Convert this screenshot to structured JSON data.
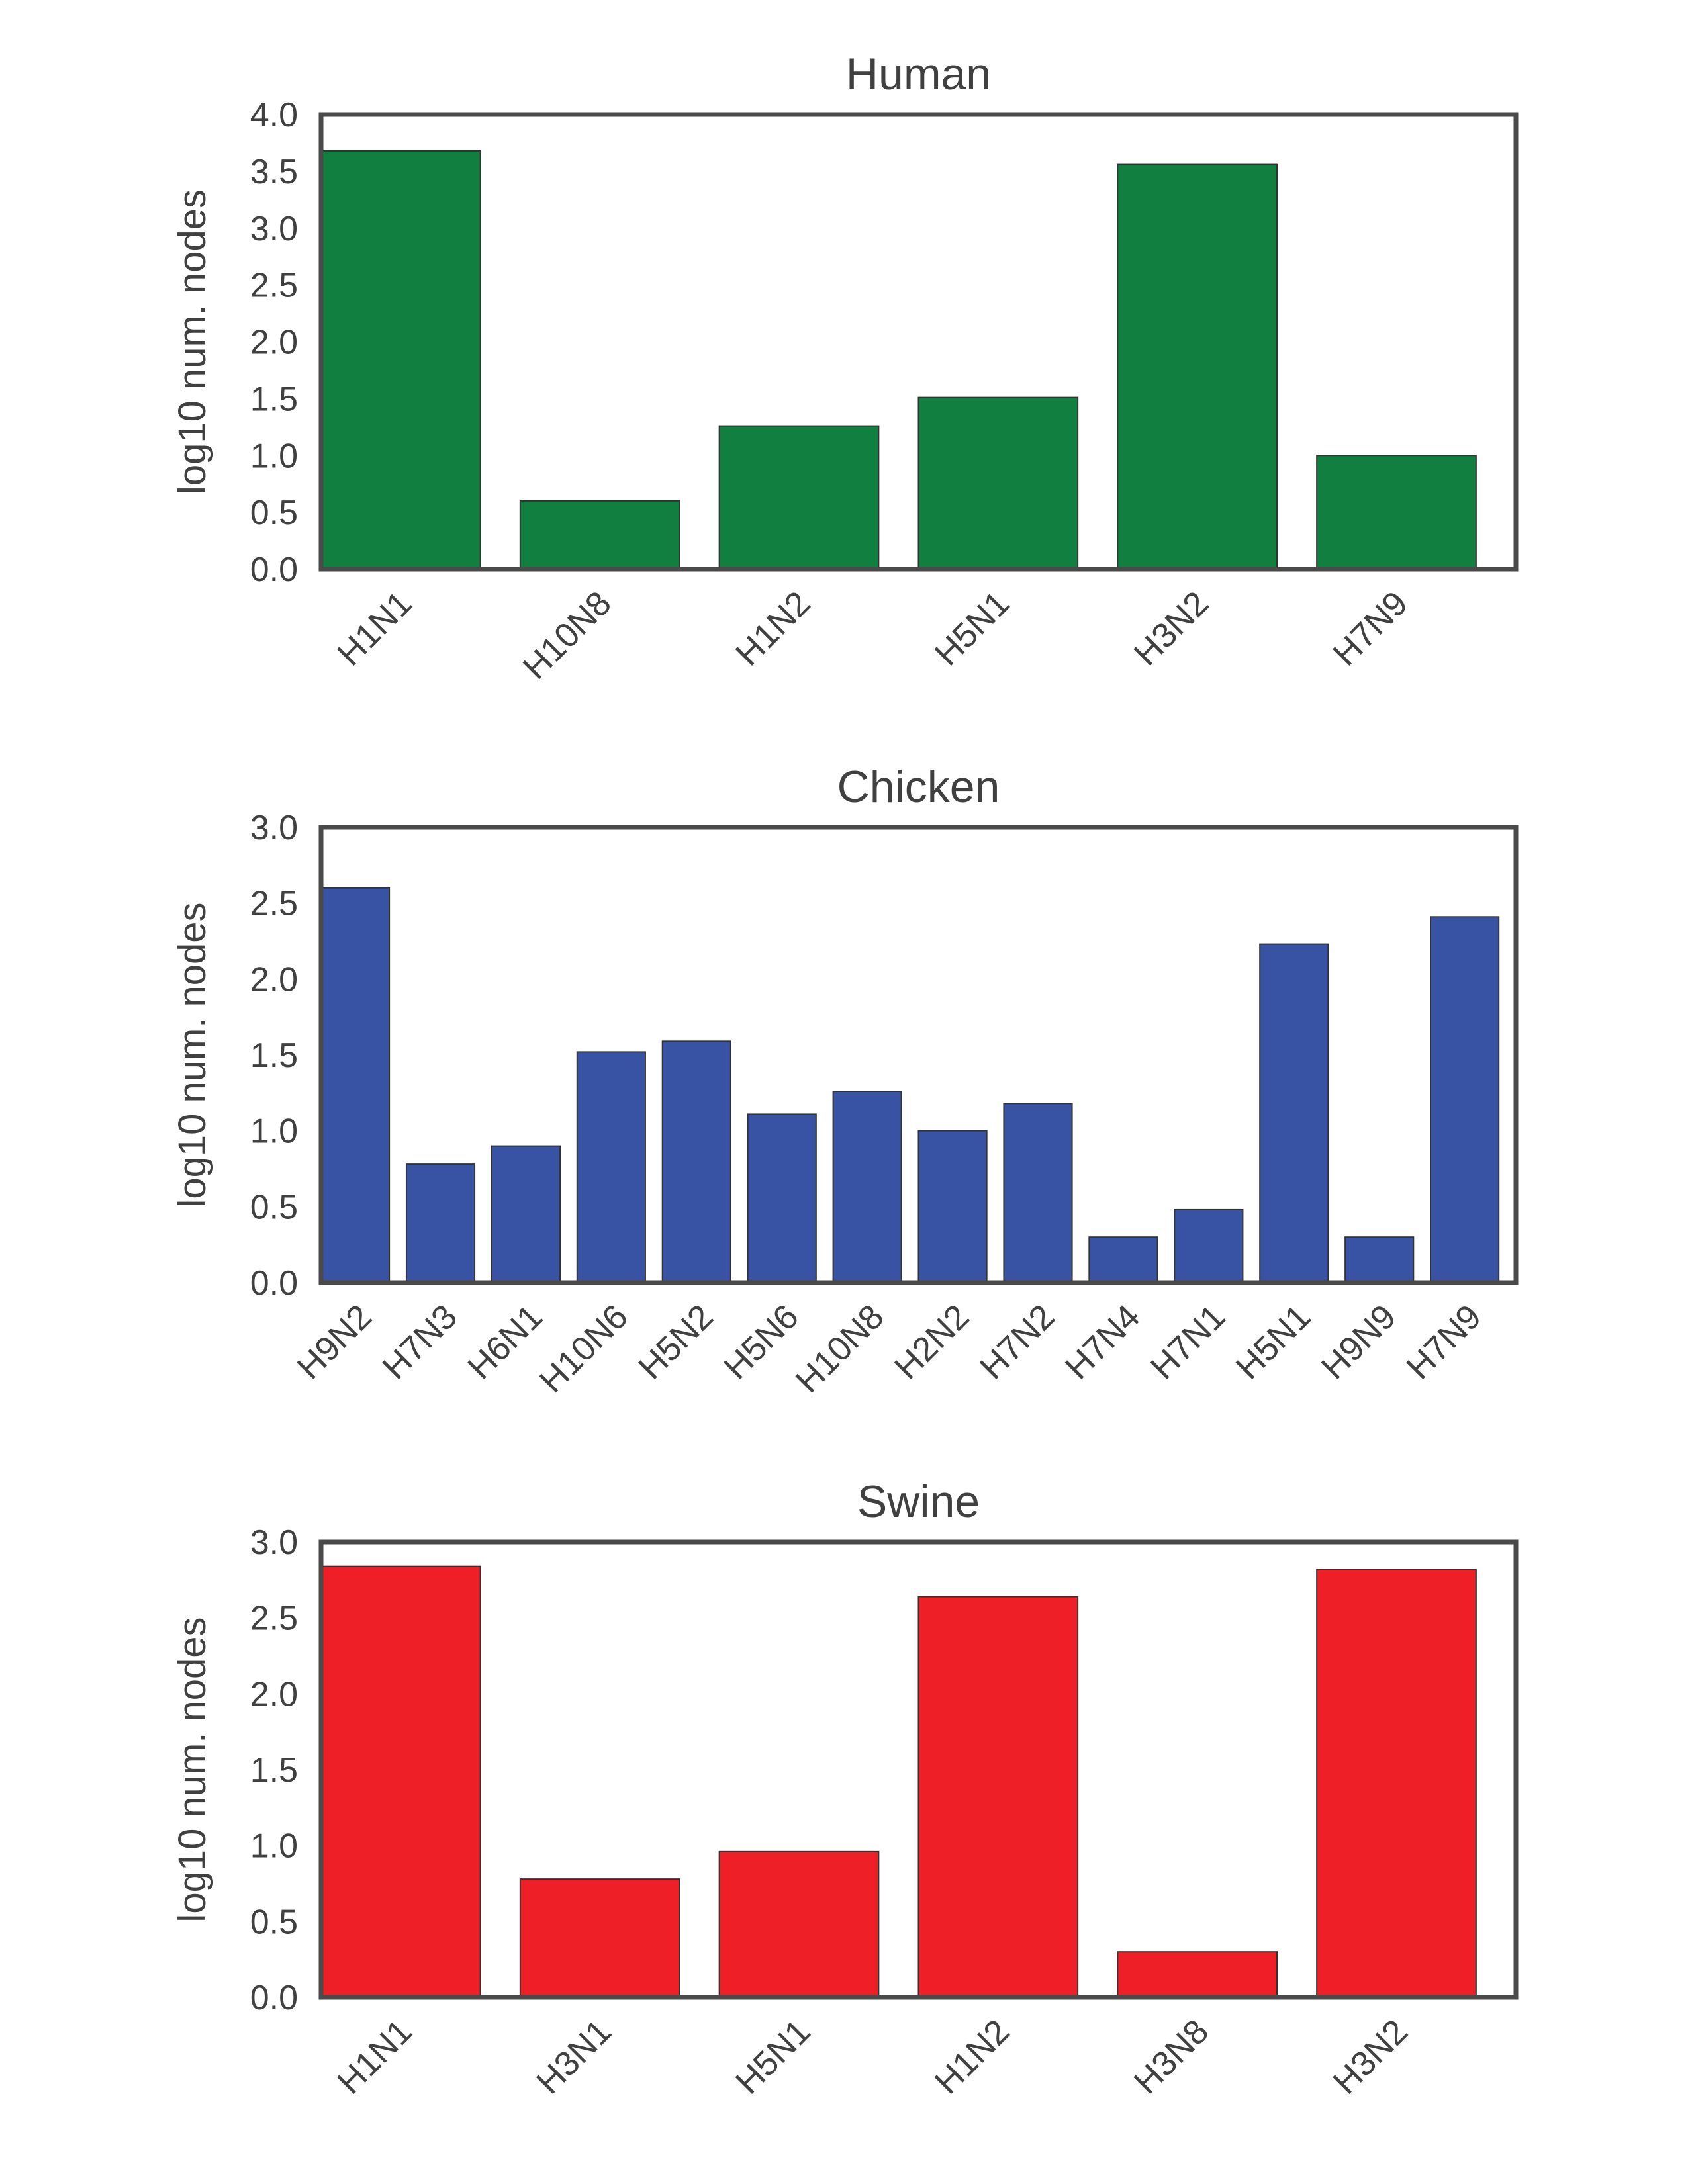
{
  "figure": {
    "frame_color": "#4a4a4a",
    "text_color": "#404040",
    "bar_edge_color": "#333333"
  },
  "chart_data": [
    {
      "type": "bar",
      "title": "Human",
      "ylabel": "log10 num. nodes",
      "xlabel": "",
      "categories": [
        "H1N1",
        "H10N8",
        "H1N2",
        "H5N1",
        "H3N2",
        "H7N9"
      ],
      "values": [
        3.68,
        0.6,
        1.26,
        1.51,
        3.56,
        1.0
      ],
      "ylim": [
        0,
        4.0
      ],
      "yticks": [
        "0.0",
        "0.5",
        "1.0",
        "1.5",
        "2.0",
        "2.5",
        "3.0",
        "3.5",
        "4.0"
      ],
      "color": "#117f40",
      "grid": false,
      "legend": "none"
    },
    {
      "type": "bar",
      "title": "Chicken",
      "ylabel": "log10 num. nodes",
      "xlabel": "",
      "categories": [
        "H9N2",
        "H7N3",
        "H6N1",
        "H10N6",
        "H5N2",
        "H5N6",
        "H10N8",
        "H2N2",
        "H7N2",
        "H7N4",
        "H7N1",
        "H5N1",
        "H9N9",
        "H7N9"
      ],
      "values": [
        2.6,
        0.78,
        0.9,
        1.52,
        1.59,
        1.11,
        1.26,
        1.0,
        1.18,
        0.3,
        0.48,
        2.23,
        0.3,
        2.41
      ],
      "ylim": [
        0,
        3.0
      ],
      "yticks": [
        "0.0",
        "0.5",
        "1.0",
        "1.5",
        "2.0",
        "2.5",
        "3.0"
      ],
      "color": "#3953a4",
      "grid": false,
      "legend": "none"
    },
    {
      "type": "bar",
      "title": "Swine",
      "ylabel": "log10 num. nodes",
      "xlabel": "",
      "categories": [
        "H1N1",
        "H3N1",
        "H5N1",
        "H1N2",
        "H3N8",
        "H3N2"
      ],
      "values": [
        2.84,
        0.78,
        0.96,
        2.64,
        0.3,
        2.82
      ],
      "ylim": [
        0,
        3.0
      ],
      "yticks": [
        "0.0",
        "0.5",
        "1.0",
        "1.5",
        "2.0",
        "2.5",
        "3.0"
      ],
      "color": "#ee1f26",
      "grid": false,
      "legend": "none"
    }
  ]
}
